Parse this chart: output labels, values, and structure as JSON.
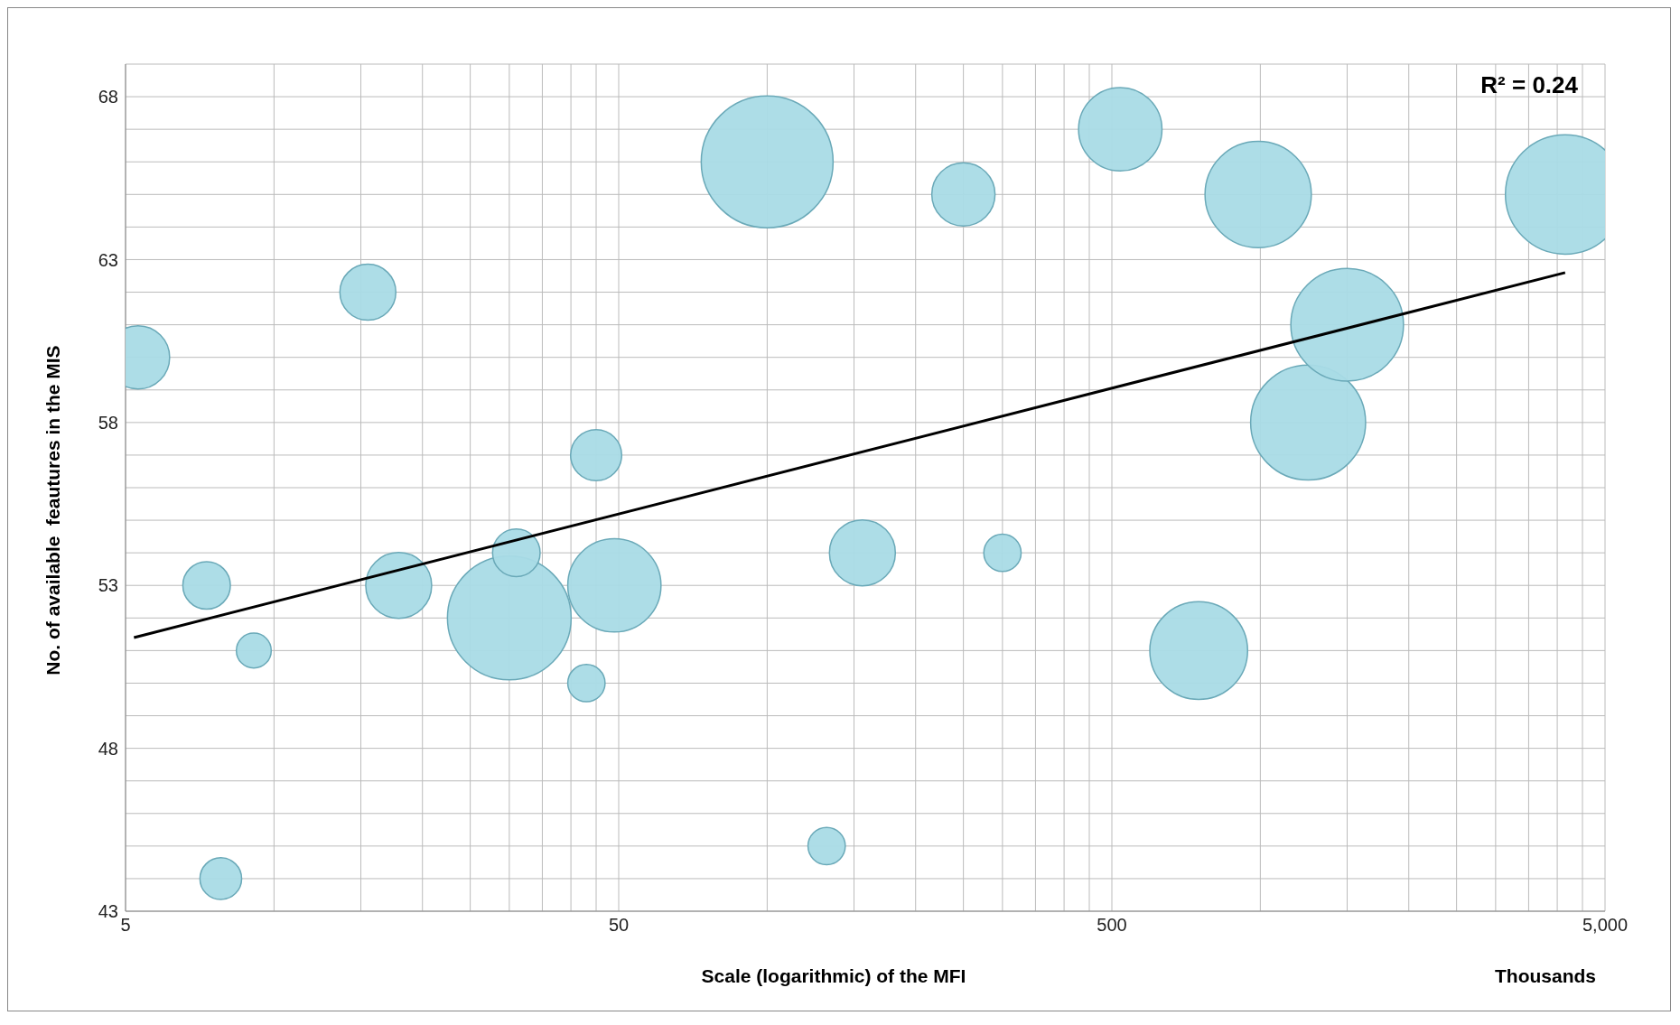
{
  "chart_data": {
    "type": "bubble",
    "xlabel": "Scale (logarithmic)  of the MFI",
    "ylabel": "No. of available  feautures in the MIS",
    "annotations": [
      "R² = 0.24",
      "Thousands"
    ],
    "log": "x",
    "grid": true,
    "legend": false,
    "xlim": [
      5,
      5000
    ],
    "xticks": [
      5,
      50,
      500,
      {
        "value": 5000,
        "label": "5,000"
      }
    ],
    "ylim": [
      43,
      69
    ],
    "yticks": [
      43,
      48,
      53,
      58,
      63,
      68
    ],
    "series": [
      {
        "color": "#a9dbe6",
        "x": [
          5.3,
          7.3,
          7.8,
          9.1,
          15.5,
          17.9,
          30,
          31,
          43,
          45,
          49,
          100,
          132,
          156,
          250,
          300,
          520,
          750,
          990,
          1250,
          1500,
          4150
        ],
        "values": [
          60,
          53,
          44,
          51,
          62,
          53,
          52,
          54,
          50,
          57,
          53,
          66,
          45,
          54,
          65,
          54,
          67,
          51,
          65,
          58,
          61,
          65
        ],
        "sizes": [
          0.23,
          0.13,
          0.1,
          0.07,
          0.18,
          0.25,
          0.88,
          0.13,
          0.08,
          0.15,
          0.5,
          1,
          0.08,
          0.25,
          0.23,
          0.08,
          0.4,
          0.55,
          0.65,
          0.76,
          0.73,
          0.82
        ]
      },
      {
        "type": "line",
        "color": "#000000",
        "x": [
          5.2,
          4150
        ],
        "values": [
          51.4,
          62.6
        ]
      }
    ]
  }
}
